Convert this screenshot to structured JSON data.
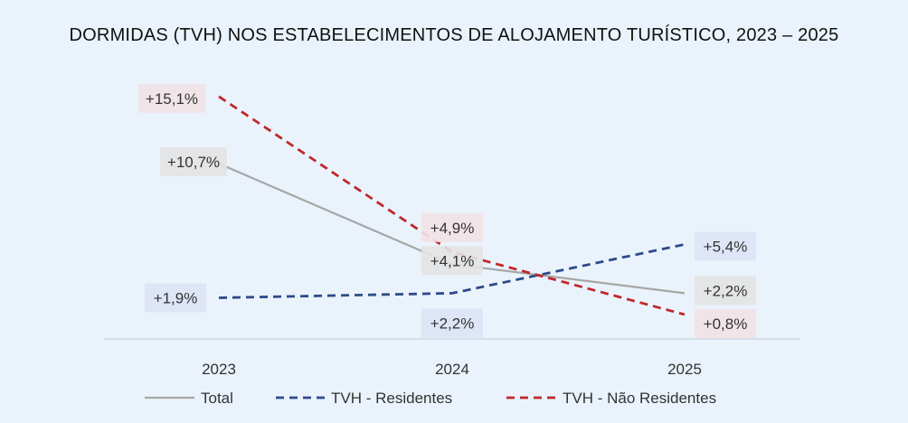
{
  "chart_data": {
    "type": "line",
    "title": "DORMIDAS (TVH) NOS ESTABELECIMENTOS DE ALOJAMENTO TURÍSTICO, 2023 – 2025",
    "categories": [
      "2023",
      "2024",
      "2025"
    ],
    "xlabel": "",
    "ylabel": "",
    "ylim": [
      -0.8,
      15.8
    ],
    "grid": false,
    "legend": "bottom",
    "series": [
      {
        "name": "Total",
        "values": [
          10.7,
          4.1,
          2.2
        ],
        "labels": [
          "+10,7%",
          "+4,1%",
          "+2,2%"
        ],
        "color": "#a6a6a6",
        "label_bg": "#e3e3e3",
        "dash": "solid"
      },
      {
        "name": "TVH - Residentes",
        "values": [
          1.9,
          2.2,
          5.4
        ],
        "labels": [
          "+1,9%",
          "+2,2%",
          "+5,4%"
        ],
        "color": "#2e4a8a",
        "label_bg": "#dde3f5",
        "dash": "dashed"
      },
      {
        "name": "TVH - Não Residentes",
        "values": [
          15.1,
          4.9,
          0.8
        ],
        "labels": [
          "+15,1%",
          "+4,9%",
          "+0,8%"
        ],
        "color": "#c0282d",
        "label_bg": "#f2e2e6",
        "dash": "dashed"
      }
    ]
  }
}
